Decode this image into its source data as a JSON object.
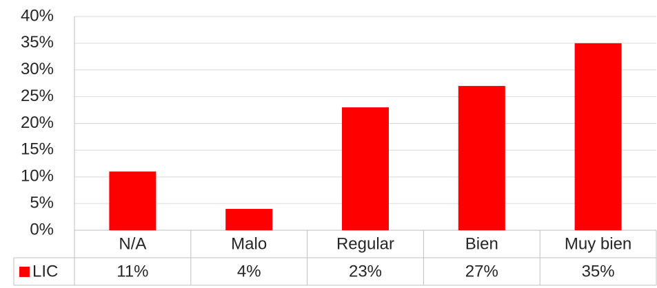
{
  "chart_data": {
    "type": "bar",
    "categories": [
      "N/A",
      "Malo",
      "Regular",
      "Bien",
      "Muy bien"
    ],
    "series": [
      {
        "name": "LIC",
        "color": "#ff0000",
        "values": [
          11,
          4,
          23,
          27,
          35
        ],
        "value_labels": [
          "11%",
          "4%",
          "23%",
          "27%",
          "35%"
        ]
      }
    ],
    "ylim": [
      0,
      40
    ],
    "yticks": [
      {
        "value": 0,
        "label": "0%"
      },
      {
        "value": 5,
        "label": "5%"
      },
      {
        "value": 10,
        "label": "10%"
      },
      {
        "value": 15,
        "label": "15%"
      },
      {
        "value": 20,
        "label": "20%"
      },
      {
        "value": 25,
        "label": "25%"
      },
      {
        "value": 30,
        "label": "30%"
      },
      {
        "value": 35,
        "label": "35%"
      },
      {
        "value": 40,
        "label": "40%"
      }
    ],
    "grid": true
  }
}
